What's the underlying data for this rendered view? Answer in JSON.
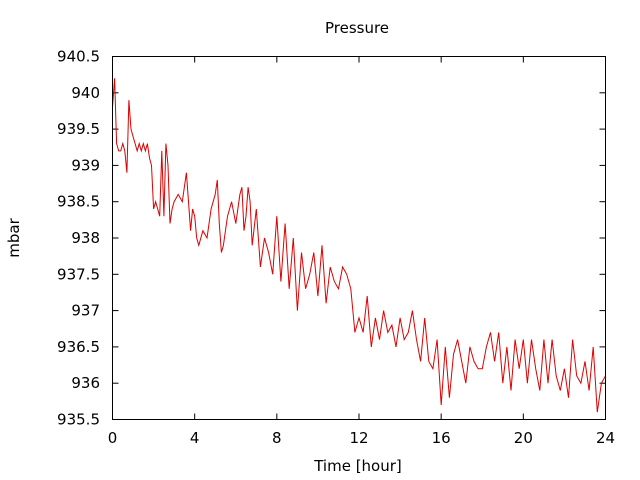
{
  "chart_data": {
    "type": "line",
    "title": "Pressure",
    "xlabel": "Time [hour]",
    "ylabel": "mbar",
    "xlim": [
      0,
      24
    ],
    "ylim": [
      935.5,
      940.5
    ],
    "xticks": [
      0,
      4,
      8,
      12,
      16,
      20,
      24
    ],
    "xtick_labels": [
      "0",
      "4",
      "8",
      "12",
      "16",
      "20",
      "24"
    ],
    "yticks": [
      935.5,
      936,
      936.5,
      937,
      937.5,
      938,
      938.5,
      939,
      939.5,
      940,
      940.5
    ],
    "ytick_labels": [
      "935.5",
      "936",
      "936.5",
      "937",
      "937.5",
      "938",
      "938.5",
      "939",
      "939.5",
      "940",
      "940.5"
    ],
    "grid": false,
    "legend": false,
    "series": [
      {
        "color": "#dd0000",
        "x": [
          0.0,
          0.1,
          0.2,
          0.3,
          0.4,
          0.5,
          0.6,
          0.7,
          0.8,
          0.9,
          1.0,
          1.1,
          1.2,
          1.3,
          1.4,
          1.5,
          1.6,
          1.7,
          1.8,
          1.9,
          2.0,
          2.1,
          2.2,
          2.3,
          2.4,
          2.5,
          2.6,
          2.7,
          2.8,
          2.9,
          3.0,
          3.2,
          3.4,
          3.6,
          3.8,
          3.9,
          4.0,
          4.1,
          4.2,
          4.4,
          4.6,
          4.8,
          5.0,
          5.1,
          5.2,
          5.3,
          5.4,
          5.6,
          5.8,
          6.0,
          6.2,
          6.3,
          6.4,
          6.5,
          6.6,
          6.7,
          6.8,
          7.0,
          7.2,
          7.4,
          7.6,
          7.8,
          8.0,
          8.2,
          8.4,
          8.6,
          8.8,
          9.0,
          9.2,
          9.4,
          9.6,
          9.8,
          10.0,
          10.2,
          10.4,
          10.6,
          10.8,
          11.0,
          11.2,
          11.4,
          11.6,
          11.8,
          12.0,
          12.2,
          12.4,
          12.6,
          12.8,
          13.0,
          13.2,
          13.4,
          13.6,
          13.8,
          14.0,
          14.2,
          14.4,
          14.6,
          14.8,
          15.0,
          15.2,
          15.4,
          15.6,
          15.8,
          16.0,
          16.2,
          16.4,
          16.6,
          16.8,
          17.0,
          17.2,
          17.4,
          17.6,
          17.8,
          18.0,
          18.2,
          18.4,
          18.6,
          18.8,
          19.0,
          19.2,
          19.4,
          19.6,
          19.8,
          20.0,
          20.2,
          20.4,
          20.6,
          20.8,
          21.0,
          21.2,
          21.4,
          21.6,
          21.8,
          22.0,
          22.2,
          22.4,
          22.6,
          22.8,
          23.0,
          23.2,
          23.4,
          23.6,
          23.8,
          24.0
        ],
        "y": [
          939.8,
          940.2,
          939.3,
          939.2,
          939.2,
          939.3,
          939.2,
          938.9,
          939.9,
          939.5,
          939.4,
          939.3,
          939.2,
          939.3,
          939.2,
          939.3,
          939.2,
          939.3,
          939.1,
          939.0,
          938.4,
          938.5,
          938.4,
          938.3,
          939.2,
          938.3,
          939.3,
          939.0,
          938.2,
          938.4,
          938.5,
          938.6,
          938.5,
          938.9,
          938.1,
          938.4,
          938.3,
          938.0,
          937.9,
          938.1,
          938.0,
          938.4,
          938.6,
          938.8,
          938.2,
          937.8,
          937.9,
          938.3,
          938.5,
          938.2,
          938.6,
          938.7,
          938.1,
          938.3,
          938.7,
          938.5,
          937.9,
          938.4,
          937.6,
          938.0,
          937.8,
          937.5,
          938.3,
          937.4,
          938.2,
          937.3,
          938.0,
          937.0,
          937.8,
          937.3,
          937.5,
          937.8,
          937.2,
          937.9,
          937.1,
          937.6,
          937.4,
          937.3,
          937.6,
          937.5,
          937.3,
          936.7,
          936.9,
          936.7,
          937.2,
          936.5,
          936.9,
          936.6,
          937.0,
          936.7,
          936.8,
          936.5,
          936.9,
          936.6,
          936.7,
          937.0,
          936.6,
          936.3,
          936.9,
          936.3,
          936.2,
          936.6,
          935.7,
          936.5,
          935.8,
          936.4,
          936.6,
          936.3,
          936.0,
          936.5,
          936.3,
          936.2,
          936.2,
          936.5,
          936.7,
          936.3,
          936.7,
          936.0,
          936.5,
          935.9,
          936.6,
          936.2,
          936.6,
          936.0,
          936.6,
          936.2,
          935.9,
          936.6,
          936.0,
          936.6,
          936.1,
          935.9,
          936.2,
          935.8,
          936.6,
          936.1,
          936.0,
          936.3,
          935.9,
          936.5,
          935.6,
          936.0,
          936.1
        ]
      }
    ]
  }
}
